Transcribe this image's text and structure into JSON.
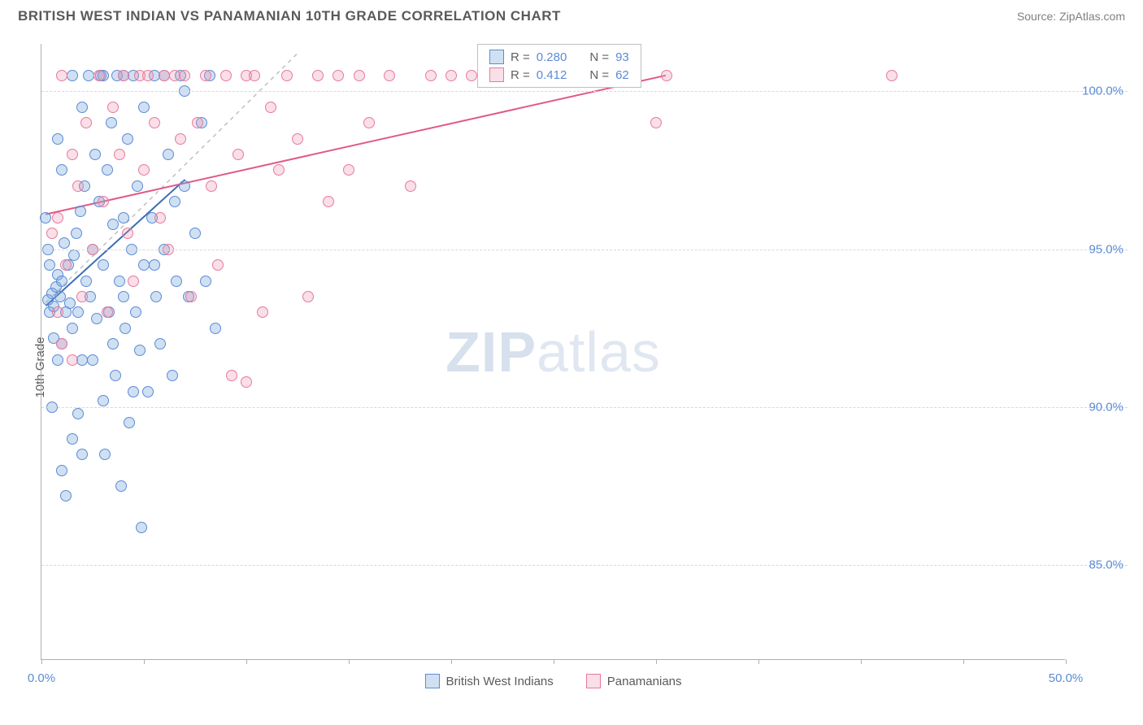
{
  "header": {
    "title": "BRITISH WEST INDIAN VS PANAMANIAN 10TH GRADE CORRELATION CHART",
    "source": "Source: ZipAtlas.com"
  },
  "chart": {
    "type": "scatter",
    "ylabel": "10th Grade",
    "background_color": "#ffffff",
    "grid_color": "#d8d8d8",
    "axis_color": "#b0b0b0",
    "tick_label_color": "#5b8bd4",
    "label_fontsize": 15,
    "title_fontsize": 17,
    "xlim": [
      0,
      50
    ],
    "ylim": [
      82,
      101.5
    ],
    "xticks": [
      0,
      5,
      10,
      15,
      20,
      25,
      30,
      35,
      40,
      45,
      50
    ],
    "xtick_labels": {
      "0": "0.0%",
      "50": "50.0%"
    },
    "yticks": [
      85,
      90,
      95,
      100
    ],
    "ytick_labels": {
      "85": "85.0%",
      "90": "90.0%",
      "95": "95.0%",
      "100": "100.0%"
    },
    "watermark": {
      "zip": "ZIP",
      "atlas": "atlas"
    },
    "marker_radius": 7,
    "series": [
      {
        "name": "British West Indians",
        "color_fill": "rgba(120,165,220,0.35)",
        "color_stroke": "#5b8bd4",
        "R": "0.280",
        "N": "93",
        "trend": {
          "x1": 0.2,
          "y1": 93.2,
          "x2": 7.0,
          "y2": 97.2,
          "color": "#3b6db8",
          "width": 2
        },
        "points": [
          [
            0.3,
            93.4
          ],
          [
            0.4,
            93.0
          ],
          [
            0.5,
            93.6
          ],
          [
            0.6,
            93.2
          ],
          [
            0.7,
            93.8
          ],
          [
            0.8,
            94.2
          ],
          [
            0.9,
            93.5
          ],
          [
            1.0,
            92.0
          ],
          [
            1.0,
            94.0
          ],
          [
            1.1,
            95.2
          ],
          [
            1.2,
            93.0
          ],
          [
            1.3,
            94.5
          ],
          [
            1.4,
            93.3
          ],
          [
            1.5,
            92.5
          ],
          [
            1.6,
            94.8
          ],
          [
            1.7,
            95.5
          ],
          [
            1.8,
            93.0
          ],
          [
            1.9,
            96.2
          ],
          [
            2.0,
            91.5
          ],
          [
            2.0,
            99.5
          ],
          [
            2.1,
            97.0
          ],
          [
            2.2,
            94.0
          ],
          [
            2.3,
            100.5
          ],
          [
            2.4,
            93.5
          ],
          [
            2.5,
            95.0
          ],
          [
            2.6,
            98.0
          ],
          [
            2.7,
            92.8
          ],
          [
            2.8,
            96.5
          ],
          [
            2.9,
            100.5
          ],
          [
            3.0,
            94.5
          ],
          [
            3.0,
            90.2
          ],
          [
            3.1,
            88.5
          ],
          [
            3.2,
            97.5
          ],
          [
            3.3,
            93.0
          ],
          [
            3.4,
            99.0
          ],
          [
            3.5,
            95.8
          ],
          [
            3.6,
            91.0
          ],
          [
            3.7,
            100.5
          ],
          [
            3.8,
            94.0
          ],
          [
            3.9,
            87.5
          ],
          [
            4.0,
            96.0
          ],
          [
            4.0,
            100.5
          ],
          [
            4.1,
            92.5
          ],
          [
            4.2,
            98.5
          ],
          [
            4.3,
            89.5
          ],
          [
            4.4,
            95.0
          ],
          [
            4.5,
            100.5
          ],
          [
            4.6,
            93.0
          ],
          [
            4.7,
            97.0
          ],
          [
            4.8,
            91.8
          ],
          [
            4.9,
            86.2
          ],
          [
            5.0,
            94.5
          ],
          [
            5.0,
            99.5
          ],
          [
            5.2,
            90.5
          ],
          [
            5.4,
            96.0
          ],
          [
            5.5,
            100.5
          ],
          [
            5.6,
            93.5
          ],
          [
            5.8,
            92.0
          ],
          [
            6.0,
            95.0
          ],
          [
            6.0,
            100.5
          ],
          [
            6.2,
            98.0
          ],
          [
            6.4,
            91.0
          ],
          [
            6.6,
            94.0
          ],
          [
            6.8,
            100.5
          ],
          [
            7.0,
            97.0
          ],
          [
            7.0,
            100.0
          ],
          [
            7.2,
            93.5
          ],
          [
            7.5,
            95.5
          ],
          [
            7.8,
            99.0
          ],
          [
            8.0,
            94.0
          ],
          [
            8.2,
            100.5
          ],
          [
            8.5,
            92.5
          ],
          [
            1.0,
            88.0
          ],
          [
            1.2,
            87.2
          ],
          [
            1.5,
            89.0
          ],
          [
            1.8,
            89.8
          ],
          [
            0.8,
            91.5
          ],
          [
            0.6,
            92.2
          ],
          [
            0.5,
            90.0
          ],
          [
            0.4,
            94.5
          ],
          [
            0.3,
            95.0
          ],
          [
            0.2,
            96.0
          ],
          [
            2.0,
            88.5
          ],
          [
            1.5,
            100.5
          ],
          [
            3.0,
            100.5
          ],
          [
            4.5,
            90.5
          ],
          [
            5.5,
            94.5
          ],
          [
            6.5,
            96.5
          ],
          [
            4.0,
            93.5
          ],
          [
            3.5,
            92.0
          ],
          [
            2.5,
            91.5
          ],
          [
            1.0,
            97.5
          ],
          [
            0.8,
            98.5
          ]
        ]
      },
      {
        "name": "Panamanians",
        "color_fill": "rgba(235,150,175,0.30)",
        "color_stroke": "#e77a9b",
        "R": "0.412",
        "N": "62",
        "trend": {
          "x1": 0.2,
          "y1": 96.1,
          "x2": 30.5,
          "y2": 100.5,
          "color": "#e05a85",
          "width": 2
        },
        "points": [
          [
            0.5,
            95.5
          ],
          [
            0.8,
            96.0
          ],
          [
            1.0,
            100.5
          ],
          [
            1.2,
            94.5
          ],
          [
            1.5,
            98.0
          ],
          [
            1.8,
            97.0
          ],
          [
            2.0,
            93.5
          ],
          [
            2.2,
            99.0
          ],
          [
            2.5,
            95.0
          ],
          [
            2.8,
            100.5
          ],
          [
            3.0,
            96.5
          ],
          [
            3.2,
            93.0
          ],
          [
            3.5,
            99.5
          ],
          [
            3.8,
            98.0
          ],
          [
            4.0,
            100.5
          ],
          [
            4.2,
            95.5
          ],
          [
            4.5,
            94.0
          ],
          [
            4.8,
            100.5
          ],
          [
            5.0,
            97.5
          ],
          [
            5.2,
            100.5
          ],
          [
            5.5,
            99.0
          ],
          [
            5.8,
            96.0
          ],
          [
            6.0,
            100.5
          ],
          [
            6.2,
            95.0
          ],
          [
            6.5,
            100.5
          ],
          [
            6.8,
            98.5
          ],
          [
            7.0,
            100.5
          ],
          [
            7.3,
            93.5
          ],
          [
            7.6,
            99.0
          ],
          [
            8.0,
            100.5
          ],
          [
            8.3,
            97.0
          ],
          [
            8.6,
            94.5
          ],
          [
            9.0,
            100.5
          ],
          [
            9.3,
            91.0
          ],
          [
            9.6,
            98.0
          ],
          [
            10.0,
            100.5
          ],
          [
            10.4,
            100.5
          ],
          [
            10.8,
            93.0
          ],
          [
            11.2,
            99.5
          ],
          [
            11.6,
            97.5
          ],
          [
            12.0,
            100.5
          ],
          [
            12.5,
            98.5
          ],
          [
            13.0,
            93.5
          ],
          [
            13.5,
            100.5
          ],
          [
            14.0,
            96.5
          ],
          [
            14.5,
            100.5
          ],
          [
            15.0,
            97.5
          ],
          [
            15.5,
            100.5
          ],
          [
            16.0,
            99.0
          ],
          [
            17.0,
            100.5
          ],
          [
            18.0,
            97.0
          ],
          [
            19.0,
            100.5
          ],
          [
            20.0,
            100.5
          ],
          [
            21.0,
            100.5
          ],
          [
            10.0,
            90.8
          ],
          [
            1.0,
            92.0
          ],
          [
            1.5,
            91.5
          ],
          [
            0.8,
            93.0
          ],
          [
            30.5,
            100.5
          ],
          [
            28.0,
            100.3
          ],
          [
            41.5,
            100.5
          ],
          [
            30.0,
            99.0
          ]
        ]
      }
    ],
    "diag_line": {
      "x1": 0.2,
      "y1": 93.3,
      "x2": 12.5,
      "y2": 101.2,
      "color": "#c0c0c0",
      "dash": "5,5"
    }
  },
  "legend_top": {
    "r_label": "R =",
    "n_label": "N ="
  },
  "legend_bottom": {
    "items": [
      "British West Indians",
      "Panamanians"
    ]
  }
}
